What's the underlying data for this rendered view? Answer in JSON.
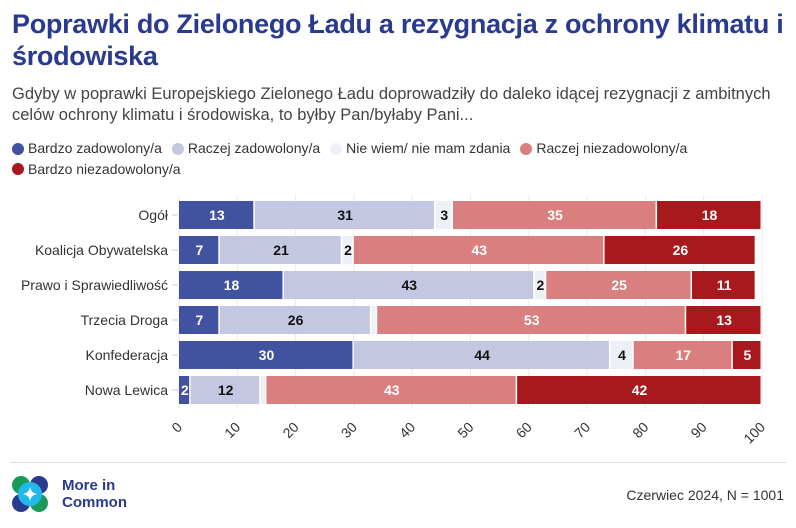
{
  "title": "Poprawki do Zielonego Ładu a rezygnacja z ochrony klimatu i środowiska",
  "subtitle": "Gdyby w poprawki Europejskiego Zielonego Ładu doprowadziły do daleko idącej rezygnacji z ambitnych celów ochrony klimatu i środowiska, to byłby Pan/byłaby Pani...",
  "logo_text": "More in Common",
  "source": "Czerwiec 2024, N = 1001",
  "chart_data": {
    "type": "bar",
    "stacked": true,
    "orientation": "horizontal",
    "xlim": [
      0,
      100
    ],
    "xticks": [
      "0",
      "10",
      "20",
      "30",
      "40",
      "50",
      "60",
      "70",
      "80",
      "90",
      "100"
    ],
    "series": [
      {
        "name": "Bardzo zadowolony/a",
        "color": "#4152a0",
        "label_color": "#ffffff",
        "values": [
          13,
          7,
          18,
          7,
          30,
          2
        ]
      },
      {
        "name": "Raczej zadowolony/a",
        "color": "#c3c7e2",
        "label_color": "#111111",
        "values": [
          31,
          21,
          43,
          26,
          44,
          12
        ]
      },
      {
        "name": "Nie wiem/ nie mam zdania",
        "color": "#eef0f8",
        "label_color": "#111111",
        "values": [
          3,
          2,
          2,
          1,
          4,
          1
        ]
      },
      {
        "name": "Raczej niezadowolony/a",
        "color": "#d97f7f",
        "label_color": "#ffffff",
        "values": [
          35,
          43,
          25,
          53,
          17,
          43
        ]
      },
      {
        "name": "Bardzo niezadowolony/a",
        "color": "#a8191d",
        "label_color": "#ffffff",
        "values": [
          18,
          26,
          11,
          13,
          5,
          42
        ]
      }
    ],
    "categories": [
      "Ogół",
      "Koalicja Obywatelska",
      "Prawo i Sprawiedliwość",
      "Trzecia Droga",
      "Konfederacja",
      "Nowa Lewica"
    ]
  }
}
